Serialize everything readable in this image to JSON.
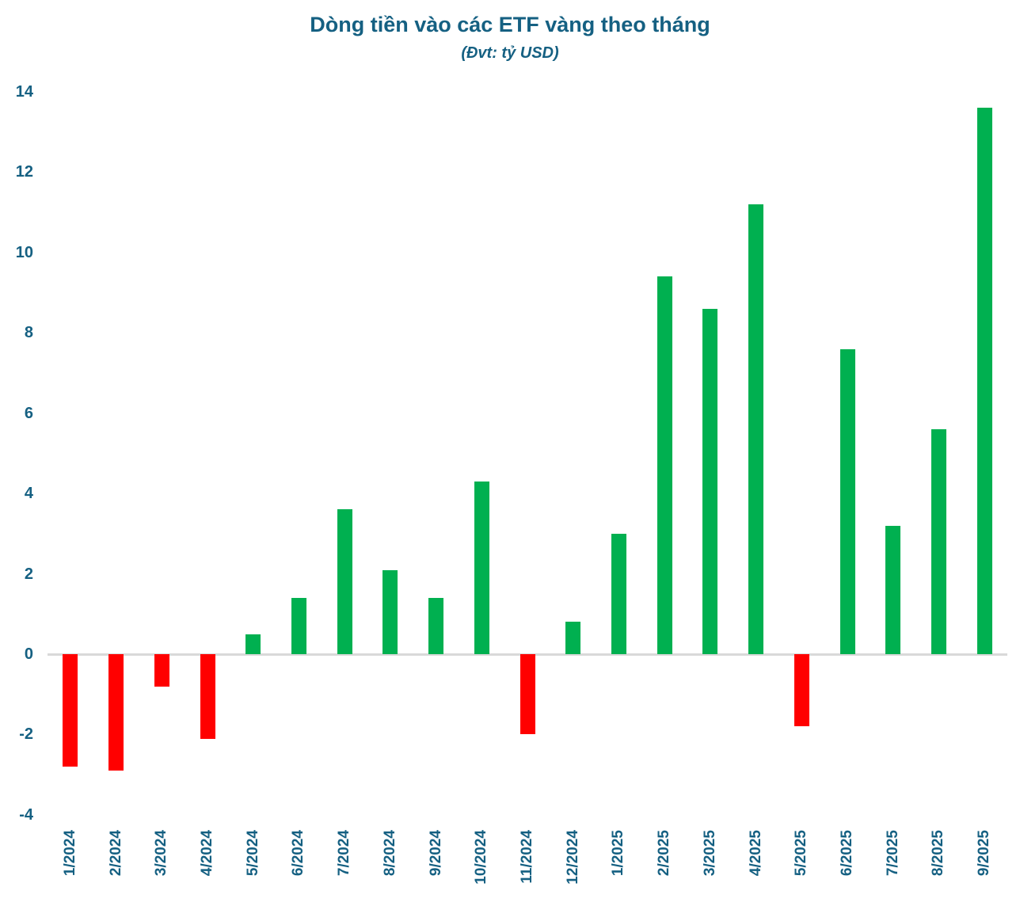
{
  "colors": {
    "title_text": "#156082",
    "axis_text": "#156082",
    "positive_bar": "#00B050",
    "negative_bar": "#FF0000",
    "zero_line": "#D9D9D9",
    "background": "#FFFFFF"
  },
  "chart_data": {
    "type": "bar",
    "title": "Dòng tiền vào các ETF vàng theo tháng",
    "subtitle": "(Đvt: tỷ USD)",
    "categories": [
      "1/2024",
      "2/2024",
      "3/2024",
      "4/2024",
      "5/2024",
      "6/2024",
      "7/2024",
      "8/2024",
      "9/2024",
      "10/2024",
      "11/2024",
      "12/2024",
      "1/2025",
      "2/2025",
      "3/2025",
      "4/2025",
      "5/2025",
      "6/2025",
      "7/2025",
      "8/2025",
      "9/2025"
    ],
    "values": [
      -2.8,
      -2.9,
      -0.8,
      -2.1,
      0.5,
      1.4,
      3.6,
      2.1,
      1.4,
      4.3,
      -2.0,
      0.8,
      3.0,
      9.4,
      8.6,
      11.2,
      -1.8,
      7.6,
      3.2,
      5.6,
      13.6
    ],
    "xlabel": "",
    "ylabel": "",
    "ylim": [
      -4,
      14
    ],
    "ytick_step": 2,
    "yticks": [
      14,
      12,
      10,
      8,
      6,
      4,
      2,
      0,
      -2,
      -4
    ],
    "grid": false,
    "legend": false,
    "x_axis_label_rotation_degrees": 90
  }
}
